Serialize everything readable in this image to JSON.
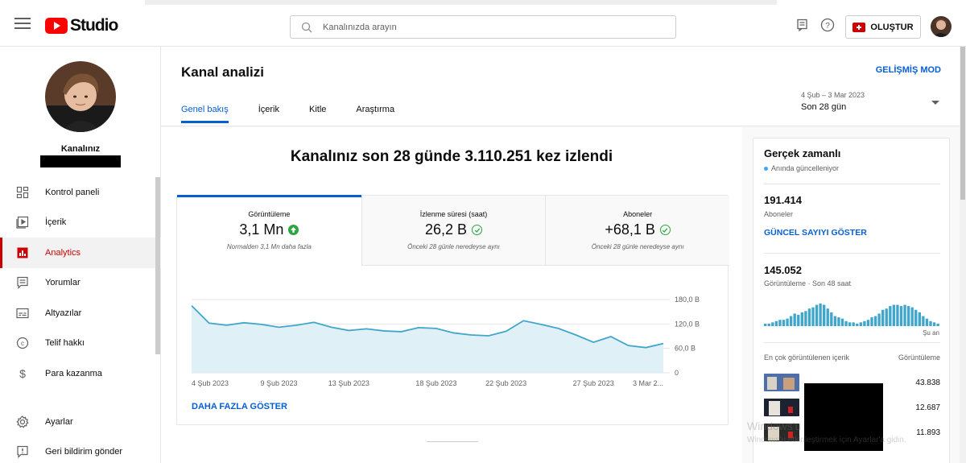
{
  "app": {
    "logo_text": "Studio"
  },
  "search": {
    "placeholder": "Kanalınızda arayın"
  },
  "header": {
    "create_label": "OLUŞTUR"
  },
  "channel": {
    "label": "Kanalınız"
  },
  "sidebar": {
    "items": [
      {
        "label": "Kontrol paneli",
        "icon": "dashboard-icon"
      },
      {
        "label": "İçerik",
        "icon": "content-icon"
      },
      {
        "label": "Analytics",
        "icon": "analytics-icon",
        "active": true
      },
      {
        "label": "Yorumlar",
        "icon": "comments-icon"
      },
      {
        "label": "Altyazılar",
        "icon": "subtitles-icon"
      },
      {
        "label": "Telif hakkı",
        "icon": "copyright-icon"
      },
      {
        "label": "Para kazanma",
        "icon": "dollar-icon"
      }
    ],
    "bottom": [
      {
        "label": "Ayarlar",
        "icon": "gear-icon"
      },
      {
        "label": "Geri bildirim gönder",
        "icon": "feedback-icon"
      }
    ]
  },
  "page": {
    "title": "Kanal analizi",
    "advanced_mode": "GELİŞMİŞ MOD",
    "tabs": [
      "Genel bakış",
      "İçerik",
      "Kitle",
      "Araştırma"
    ],
    "active_tab": 0,
    "date_range": "4 Şub – 3 Mar 2023",
    "date_period": "Son 28 gün"
  },
  "overview": {
    "headline": "Kanalınız son 28 günde 3.110.251 kez izlendi",
    "metrics": [
      {
        "title": "Görüntüleme",
        "value": "3,1 Mn",
        "status": "up",
        "note": "Normalden 3,1 Mn daha fazla"
      },
      {
        "title": "İzlenme süresi (saat)",
        "value": "26,2 B",
        "status": "ok",
        "note": "Önceki 28 günle neredeyse aynı"
      },
      {
        "title": "Aboneler",
        "value": "+68,1 B",
        "status": "ok",
        "note": "Önceki 28 günle neredeyse aynı"
      }
    ],
    "more_label": "DAHA FAZLA GÖSTER"
  },
  "chart_data": {
    "type": "area",
    "series": [
      {
        "values": [
          165,
          122,
          117,
          123,
          119,
          112,
          117,
          124,
          112,
          104,
          108,
          103,
          101,
          111,
          109,
          98,
          93,
          91,
          102,
          128,
          119,
          109,
          93,
          75,
          89,
          67,
          62,
          72
        ]
      }
    ],
    "x_tick_labels": [
      "4 Şub 2023",
      "9 Şub 2023",
      "13 Şub 2023",
      "18 Şub 2023",
      "22 Şub 2023",
      "27 Şub 2023",
      "3 Mar 2..."
    ],
    "y_tick_labels": [
      "180,0 B",
      "120,0 B",
      "60,0 B",
      "0"
    ],
    "ylim": [
      0,
      180
    ],
    "grid": true,
    "colors": {
      "line": "#41a6cc",
      "fill": "#dff0f7"
    }
  },
  "realtime": {
    "title": "Gerçek zamanlı",
    "subtitle": "Anında güncelleniyor",
    "subscribers": "191.414",
    "subscribers_label": "Aboneler",
    "subscribers_link": "GÜNCEL SAYIYI GÖSTER",
    "views": "145.052",
    "views_label": "Görüntüleme · Son 48 saat",
    "now_label": "Şu an",
    "hourly_bars": [
      2,
      2,
      3,
      4,
      5,
      5,
      6,
      8,
      10,
      9,
      11,
      12,
      14,
      15,
      17,
      18,
      17,
      14,
      11,
      8,
      7,
      6,
      4,
      3,
      3,
      2,
      3,
      4,
      5,
      7,
      8,
      10,
      13,
      14,
      16,
      17,
      17,
      16,
      17,
      16,
      15,
      13,
      11,
      8,
      6,
      4,
      3,
      2
    ],
    "top_content_label": "En çok görüntülenen içerik",
    "top_views_label": "Görüntüleme",
    "top_values": [
      "43.838",
      "12.687",
      "11.893"
    ]
  },
  "watermark": {
    "line1": "Windows'u",
    "line2": "Windows'u etkinleştirmek için Ayarlar'a gidin."
  }
}
